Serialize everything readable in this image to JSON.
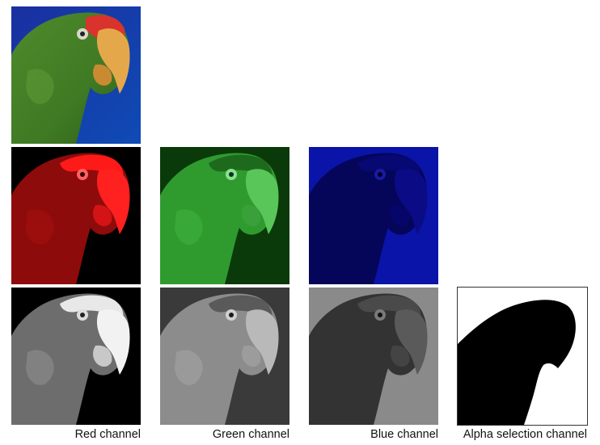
{
  "figure": {
    "rows": [
      {
        "row": "original",
        "panels": [
          {
            "id": "original",
            "kind": "color-photo",
            "subject": "parrot"
          }
        ]
      },
      {
        "row": "tinted-channels",
        "panels": [
          {
            "id": "red-tint",
            "channel": "red",
            "render": "tinted",
            "tint": "#ff0000"
          },
          {
            "id": "green-tint",
            "channel": "green",
            "render": "tinted",
            "tint": "#00c000"
          },
          {
            "id": "blue-tint",
            "channel": "blue",
            "render": "tinted",
            "tint": "#0000ff"
          }
        ]
      },
      {
        "row": "grayscale-channels",
        "panels": [
          {
            "id": "red-gray",
            "channel": "red",
            "render": "grayscale"
          },
          {
            "id": "green-gray",
            "channel": "green",
            "render": "grayscale"
          },
          {
            "id": "blue-gray",
            "channel": "blue",
            "render": "grayscale"
          },
          {
            "id": "alpha-mask",
            "channel": "alpha",
            "render": "binary-mask"
          }
        ]
      }
    ],
    "captions": {
      "red": "Red channel",
      "green": "Green channel",
      "blue": "Blue channel",
      "alpha": "Alpha selection channel"
    }
  }
}
